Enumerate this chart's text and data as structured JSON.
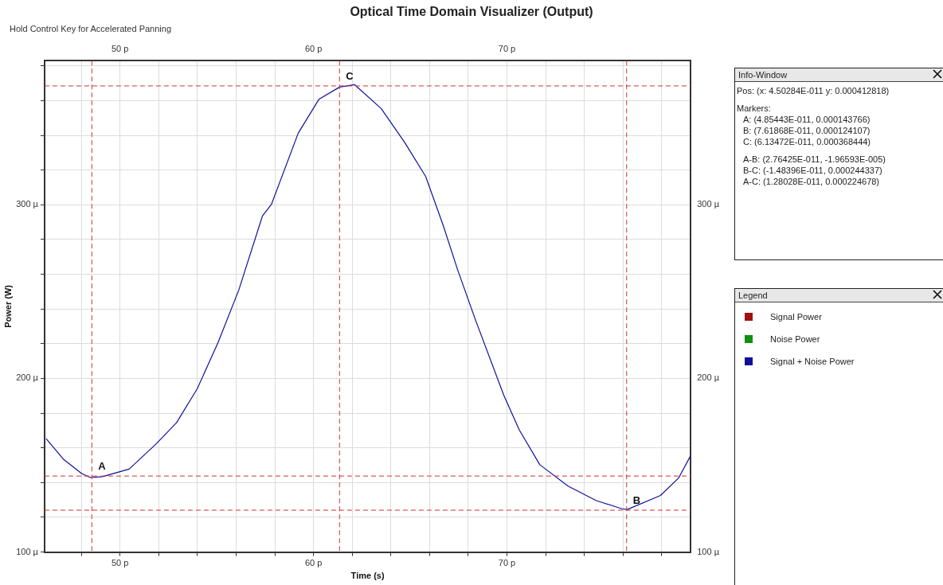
{
  "chart_data": {
    "type": "line",
    "title": "Optical Time Domain Visualizer (Output)",
    "subtitle": "Hold Control Key for Accelerated Panning",
    "xlabel": "Time (s)",
    "ylabel": "Power (W)",
    "legend_title": "Legend",
    "legend": "right",
    "grid": true,
    "marker": "none",
    "line_style": "solid",
    "x": [
      46.18,
      47.1,
      48.02,
      48.48,
      49.09,
      50.47,
      51.85,
      52.92,
      53.99,
      55.07,
      56.14,
      57.36,
      57.83,
      59.21,
      60.28,
      61.35,
      62.12,
      63.5,
      64.72,
      65.8,
      66.71,
      67.45,
      68.38,
      69.84,
      70.64,
      71.7,
      73.16,
      74.62,
      75.95,
      76.22,
      77.94,
      78.87,
      79.47
    ],
    "series": [
      {
        "name": "Signal Power",
        "color": "#a01010",
        "values": [
          null,
          null,
          null,
          null,
          null,
          null,
          null,
          null,
          null,
          null,
          null,
          null,
          null,
          null,
          null,
          null,
          null,
          null,
          null,
          null,
          null,
          null,
          null,
          null,
          null,
          null,
          null,
          null,
          null,
          null,
          null,
          null,
          null
        ]
      },
      {
        "name": "Noise Power",
        "color": "#109010",
        "values": [
          null,
          null,
          null,
          null,
          null,
          null,
          null,
          null,
          null,
          null,
          null,
          null,
          null,
          null,
          null,
          null,
          null,
          null,
          null,
          null,
          null,
          null,
          null,
          null,
          null,
          null,
          null,
          null,
          null,
          null,
          null,
          null,
          null
        ]
      },
      {
        "name": "Signal + Noise Power",
        "color": "#10109a",
        "values": [
          165.3,
          153.2,
          145.2,
          142.9,
          143.4,
          147.8,
          162.1,
          174.5,
          194.0,
          220.7,
          250.9,
          293.5,
          300.3,
          341.2,
          360.7,
          367.8,
          369.2,
          355.4,
          335.8,
          316.3,
          288.0,
          262.6,
          233.5,
          190.2,
          170.3,
          150.3,
          138.0,
          129.6,
          124.9,
          124.5,
          132.6,
          142.6,
          155.0
        ]
      }
    ],
    "xlim": [
      46.1,
      79.5
    ],
    "xticks": [
      {
        "value": 48,
        "label": null
      },
      {
        "value": 50,
        "label": "50 p"
      },
      {
        "value": 52,
        "label": null
      },
      {
        "value": 54,
        "label": null
      },
      {
        "value": 56,
        "label": null
      },
      {
        "value": 58,
        "label": null
      },
      {
        "value": 60,
        "label": "60 p"
      },
      {
        "value": 62,
        "label": null
      },
      {
        "value": 64,
        "label": null
      },
      {
        "value": 66,
        "label": null
      },
      {
        "value": 68,
        "label": null
      },
      {
        "value": 70,
        "label": "70 p"
      },
      {
        "value": 72,
        "label": null
      },
      {
        "value": 74,
        "label": null
      },
      {
        "value": 76,
        "label": null
      },
      {
        "value": 78,
        "label": null
      }
    ],
    "x2lim": [
      46.1,
      79.5
    ],
    "x2ticks": [
      {
        "value": 48,
        "label": null
      },
      {
        "value": 50,
        "label": "50 p"
      },
      {
        "value": 52,
        "label": null
      },
      {
        "value": 54,
        "label": null
      },
      {
        "value": 56,
        "label": null
      },
      {
        "value": 58,
        "label": null
      },
      {
        "value": 60,
        "label": "60 p"
      },
      {
        "value": 62,
        "label": null
      },
      {
        "value": 64,
        "label": null
      },
      {
        "value": 66,
        "label": null
      },
      {
        "value": 68,
        "label": null
      },
      {
        "value": 70,
        "label": "70 p"
      },
      {
        "value": 72,
        "label": null
      },
      {
        "value": 74,
        "label": null
      },
      {
        "value": 76,
        "label": null
      },
      {
        "value": 78,
        "label": null
      }
    ],
    "ylim": [
      100,
      383
    ],
    "yticks": [
      {
        "value": 100,
        "label": "100 µ"
      },
      {
        "value": 120,
        "label": null
      },
      {
        "value": 140,
        "label": null
      },
      {
        "value": 160,
        "label": null
      },
      {
        "value": 180,
        "label": null
      },
      {
        "value": 200,
        "label": "200 µ"
      },
      {
        "value": 220,
        "label": null
      },
      {
        "value": 240,
        "label": null
      },
      {
        "value": 260,
        "label": null
      },
      {
        "value": 280,
        "label": null
      },
      {
        "value": 300,
        "label": "300 µ"
      },
      {
        "value": 320,
        "label": null
      },
      {
        "value": 340,
        "label": null
      },
      {
        "value": 360,
        "label": null
      },
      {
        "value": 380,
        "label": null
      }
    ],
    "y2lim": [
      100,
      383
    ],
    "y2ticks": [
      {
        "value": 100,
        "label": "100 µ"
      },
      {
        "value": 120,
        "label": null
      },
      {
        "value": 140,
        "label": null
      },
      {
        "value": 160,
        "label": null
      },
      {
        "value": 180,
        "label": null
      },
      {
        "value": 200,
        "label": "200 µ"
      },
      {
        "value": 220,
        "label": null
      },
      {
        "value": 240,
        "label": null
      },
      {
        "value": 260,
        "label": null
      },
      {
        "value": 280,
        "label": null
      },
      {
        "value": 300,
        "label": "300 µ"
      },
      {
        "value": 320,
        "label": null
      },
      {
        "value": 340,
        "label": null
      },
      {
        "value": 360,
        "label": null
      },
      {
        "value": 380,
        "label": null
      }
    ],
    "ref_lines": [
      {
        "axis": "x",
        "value": 48.5443,
        "color": "#cc3333",
        "line_style": "dashed"
      },
      {
        "axis": "x",
        "value": 76.1868,
        "color": "#cc3333",
        "line_style": "dashed"
      },
      {
        "axis": "x",
        "value": 61.3472,
        "color": "#cc3333",
        "line_style": "dashed"
      },
      {
        "axis": "y",
        "value": 143.766,
        "color": "#cc3333",
        "line_style": "dashed"
      },
      {
        "axis": "y",
        "value": 124.107,
        "color": "#cc3333",
        "line_style": "dashed"
      },
      {
        "axis": "y",
        "value": 368.444,
        "color": "#cc3333",
        "line_style": "dashed"
      }
    ],
    "annotations": [
      "Info-Window",
      "Pos:  (x: 4.50284E-011  y: 0.000412818)",
      "Markers:",
      "A: (4.85443E-011, 0.000143766)",
      "B: (7.61868E-011, 0.000124107)",
      "C: (6.13472E-011, 0.000368444)",
      "A-B: (2.76425E-011, -1.96593E-005)",
      "B-C: (-1.48396E-011, 0.000244337)",
      "A-C: (1.28028E-011, 0.000224678)",
      {
        "text": "A",
        "x": 48.5443,
        "y": 143.766
      },
      {
        "text": "B",
        "x": 76.1868,
        "y": 124.107
      },
      {
        "text": "C",
        "x": 61.3472,
        "y": 368.444
      }
    ]
  }
}
